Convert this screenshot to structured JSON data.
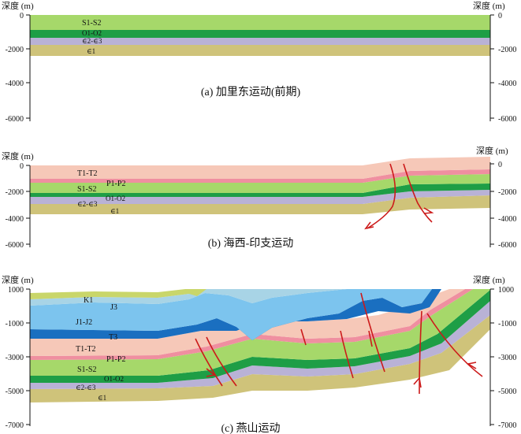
{
  "axis_title": "深度 (m)",
  "panels": [
    {
      "caption": "(a) 加里东运动(前期)",
      "left_ticks": [
        "0",
        "-2000",
        "-4000",
        "-6000"
      ],
      "right_ticks": [
        "0",
        "-2000",
        "-4000",
        "-6000"
      ],
      "labels": {
        "s1s2": "S1-S2",
        "o1o2": "O1-O2",
        "e2e3": "∈2-∈3",
        "e1": "∈1"
      }
    },
    {
      "caption": "(b) 海西-印支运动",
      "left_ticks": [
        "0",
        "-2000",
        "-4000",
        "-6000"
      ],
      "right_ticks": [
        "0",
        "-2000",
        "-4000",
        "-6000"
      ],
      "labels": {
        "t1t2": "T1-T2",
        "p1p2": "P1-P2",
        "s1s2": "S1-S2",
        "o1o2": "O1-O2",
        "e2e3": "∈2-∈3",
        "e1": "∈1"
      }
    },
    {
      "caption": "(c) 燕山运动",
      "left_ticks": [
        "1000",
        "-1000",
        "-3000",
        "-5000",
        "-7000"
      ],
      "right_ticks": [
        "1000",
        "-1000",
        "-3000",
        "-5000",
        "-7000"
      ],
      "labels": {
        "k1": "K1",
        "j3": "J3",
        "j1j2": "J1-J2",
        "t3": "T3",
        "t1t2": "T1-T2",
        "p1p2": "P1-P2",
        "s1s2": "S1-S2",
        "o1o2": "O1-O2",
        "e2e3": "∈2-∈3",
        "e1": "∈1"
      }
    }
  ],
  "colors": {
    "e1": "#cfc37a",
    "e2e3": "#b9b2d6",
    "o1o2": "#1e9e46",
    "s1s2": "#a6d86a",
    "p1p2": "#ef8fa0",
    "t1t2": "#f6c8b8",
    "t3": "#1a6fc0",
    "j1j2": "#7cc4ee",
    "j3": "#a8d4e6",
    "k1": "#c9d66a",
    "fault": "#cc1a1a"
  }
}
